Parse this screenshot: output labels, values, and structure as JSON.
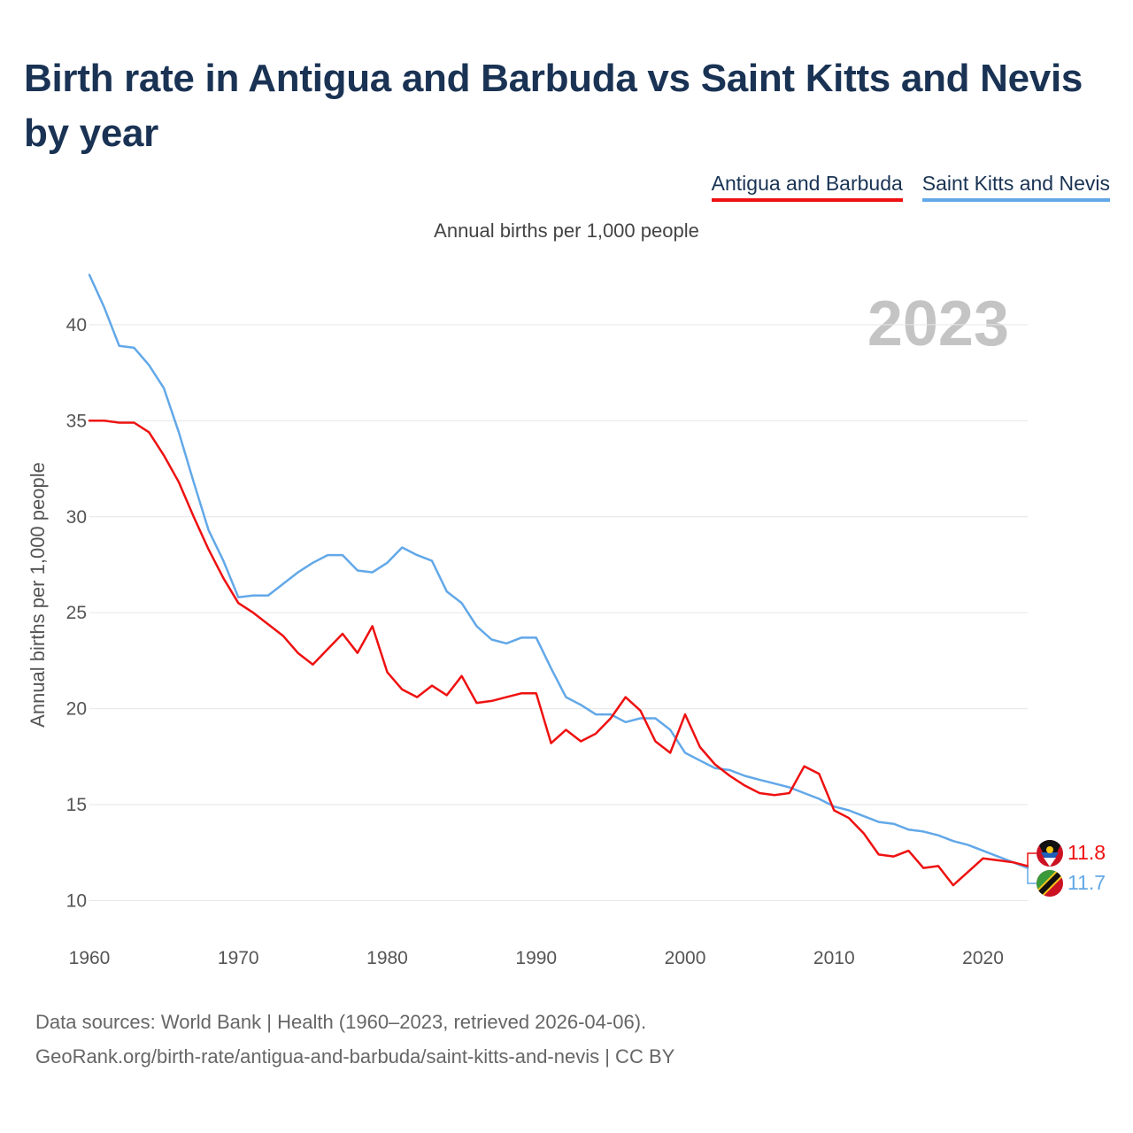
{
  "title": "Birth rate in Antigua and Barbuda vs Saint Kitts and Nevis by year",
  "subtitle": "Annual births per 1,000 people",
  "year_watermark": "2023",
  "source_line1": "Data sources: World Bank | Health (1960–2023, retrieved 2026-04-06).",
  "source_line2": "GeoRank.org/birth-rate/antigua-and-barbuda/saint-kitts-and-nevis | CC BY",
  "colors": {
    "series0": "#ee1111",
    "series1": "#62a8e8"
  },
  "chart_data": {
    "type": "line",
    "title": "Birth rate in Antigua and Barbuda vs Saint Kitts and Nevis by year",
    "xlabel": "",
    "ylabel": "Annual births per 1,000 people",
    "xlim": [
      1960,
      2023
    ],
    "ylim": [
      8.5,
      43.5
    ],
    "xticks": [
      1960,
      1970,
      1980,
      1990,
      2000,
      2010,
      2020
    ],
    "yticks": [
      10,
      15,
      20,
      25,
      30,
      35,
      40
    ],
    "grid": true,
    "legend": "top-right",
    "x": [
      1960,
      1961,
      1962,
      1963,
      1964,
      1965,
      1966,
      1967,
      1968,
      1969,
      1970,
      1971,
      1972,
      1973,
      1974,
      1975,
      1976,
      1977,
      1978,
      1979,
      1980,
      1981,
      1982,
      1983,
      1984,
      1985,
      1986,
      1987,
      1988,
      1989,
      1990,
      1991,
      1992,
      1993,
      1994,
      1995,
      1996,
      1997,
      1998,
      1999,
      2000,
      2001,
      2002,
      2003,
      2004,
      2005,
      2006,
      2007,
      2008,
      2009,
      2010,
      2011,
      2012,
      2013,
      2014,
      2015,
      2016,
      2017,
      2018,
      2019,
      2020,
      2021,
      2022,
      2023
    ],
    "series": [
      {
        "name": "Antigua and Barbuda",
        "end_label": "11.8",
        "values": [
          35.0,
          35.0,
          34.9,
          34.9,
          34.4,
          33.2,
          31.8,
          30.0,
          28.3,
          26.8,
          25.5,
          25.0,
          24.4,
          23.8,
          22.9,
          22.3,
          23.1,
          23.9,
          22.9,
          24.3,
          21.9,
          21.0,
          20.6,
          21.2,
          20.7,
          21.7,
          20.3,
          20.4,
          20.6,
          20.8,
          20.8,
          18.2,
          18.9,
          18.3,
          18.7,
          19.5,
          20.6,
          19.9,
          18.3,
          17.7,
          19.7,
          18.0,
          17.1,
          16.5,
          16.0,
          15.6,
          15.5,
          15.6,
          17.0,
          16.6,
          14.7,
          14.3,
          13.5,
          12.4,
          12.3,
          12.6,
          11.7,
          11.8,
          10.8,
          11.5,
          12.2,
          12.1,
          12.0,
          11.8
        ]
      },
      {
        "name": "Saint Kitts and Nevis",
        "end_label": "11.7",
        "values": [
          42.6,
          40.9,
          38.9,
          38.8,
          37.9,
          36.7,
          34.4,
          31.8,
          29.3,
          27.7,
          25.8,
          25.9,
          25.9,
          26.5,
          27.1,
          27.6,
          28.0,
          28.0,
          27.2,
          27.1,
          27.6,
          28.4,
          28.0,
          27.7,
          26.1,
          25.5,
          24.3,
          23.6,
          23.4,
          23.7,
          23.7,
          22.1,
          20.6,
          20.2,
          19.7,
          19.7,
          19.3,
          19.5,
          19.5,
          18.9,
          17.7,
          17.3,
          16.9,
          16.8,
          16.5,
          16.3,
          16.1,
          15.9,
          15.6,
          15.3,
          14.9,
          14.7,
          14.4,
          14.1,
          14.0,
          13.7,
          13.6,
          13.4,
          13.1,
          12.9,
          12.6,
          12.3,
          12.0,
          11.7
        ]
      }
    ]
  }
}
